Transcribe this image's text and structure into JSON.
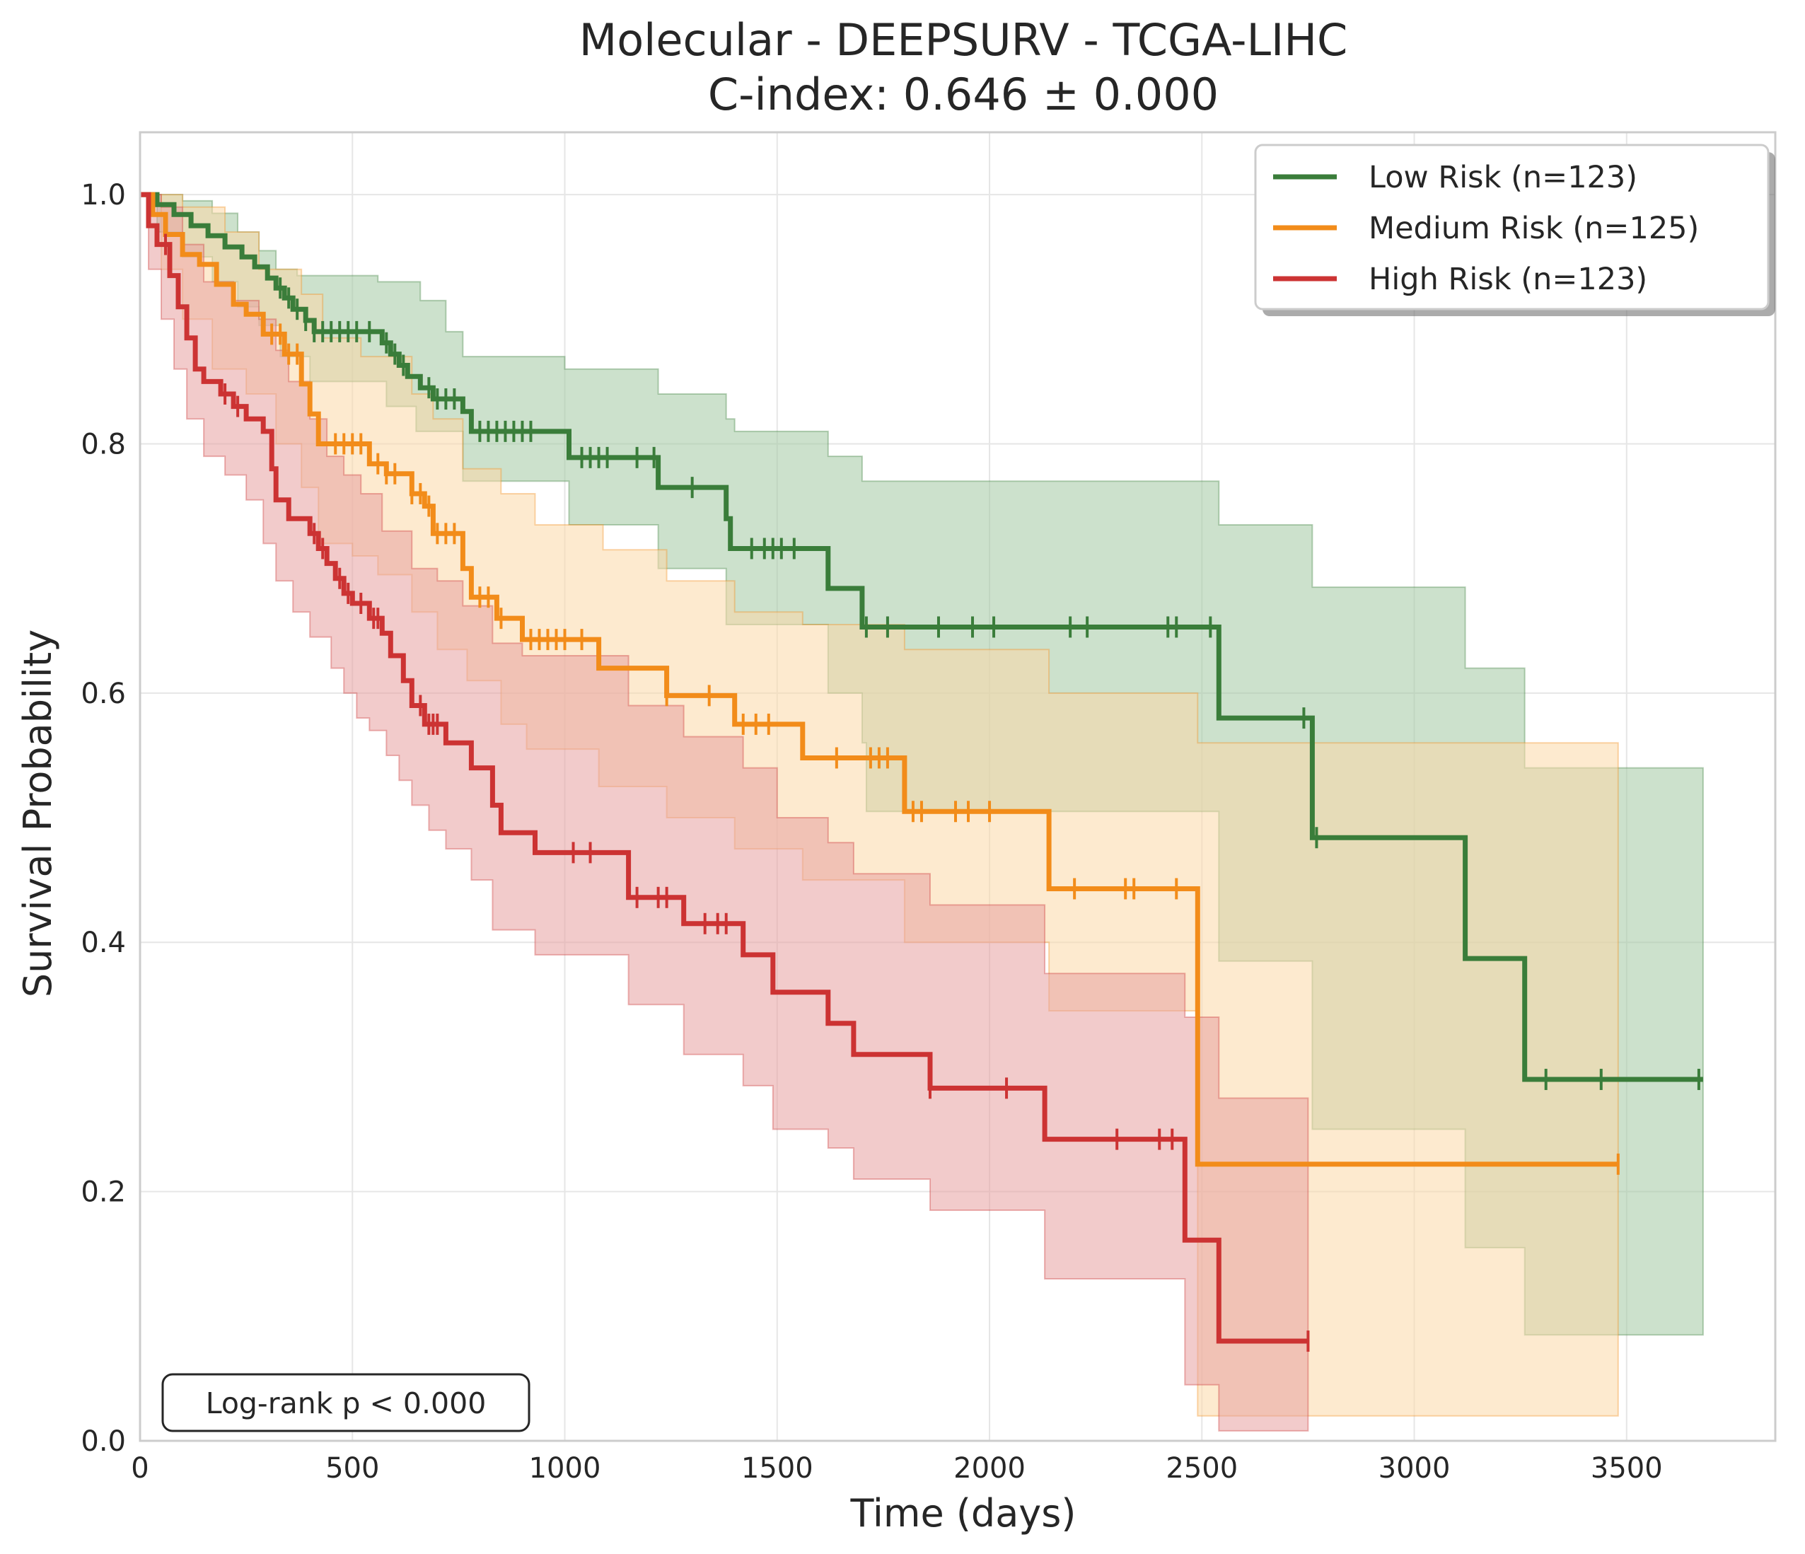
{
  "chart_data": {
    "type": "line",
    "title": "Molecular - DEEPSURV - TCGA-LIHC",
    "subtitle": "C-index: 0.646 ± 0.000",
    "xlabel": "Time (days)",
    "ylabel": "Survival Probability",
    "xlim": [
      0,
      3850
    ],
    "ylim": [
      0,
      1.05
    ],
    "xticks": [
      0,
      500,
      1000,
      1500,
      2000,
      2500,
      3000,
      3500
    ],
    "yticks": [
      0.0,
      0.2,
      0.4,
      0.6,
      0.8,
      1.0
    ],
    "xtick_labels": [
      "0",
      "500",
      "1000",
      "1500",
      "2000",
      "2500",
      "3000",
      "3500"
    ],
    "ytick_labels": [
      "0.0",
      "0.2",
      "0.4",
      "0.6",
      "0.8",
      "1.0"
    ],
    "grid": true,
    "legend_position": "top-right",
    "annotation": "Log-rank p < 0.000",
    "series": [
      {
        "name": "Low Risk (n=123)",
        "color": "#3a7d3a",
        "band_color": "#a3c9a3",
        "steps": [
          [
            0,
            1.0
          ],
          [
            40,
            0.992
          ],
          [
            80,
            0.984
          ],
          [
            120,
            0.975
          ],
          [
            160,
            0.967
          ],
          [
            200,
            0.958
          ],
          [
            240,
            0.95
          ],
          [
            270,
            0.942
          ],
          [
            300,
            0.933
          ],
          [
            320,
            0.925
          ],
          [
            340,
            0.917
          ],
          [
            360,
            0.908
          ],
          [
            390,
            0.899
          ],
          [
            410,
            0.89
          ],
          [
            570,
            0.881
          ],
          [
            590,
            0.872
          ],
          [
            610,
            0.863
          ],
          [
            630,
            0.854
          ],
          [
            660,
            0.845
          ],
          [
            690,
            0.836
          ],
          [
            760,
            0.826
          ],
          [
            780,
            0.81
          ],
          [
            1010,
            0.789
          ],
          [
            1220,
            0.765
          ],
          [
            1380,
            0.74
          ],
          [
            1390,
            0.716
          ],
          [
            1620,
            0.684
          ],
          [
            1700,
            0.653
          ],
          [
            2540,
            0.58
          ],
          [
            2760,
            0.484
          ],
          [
            3120,
            0.387
          ],
          [
            3260,
            0.29
          ],
          [
            3680,
            0.29
          ]
        ],
        "upper": [
          [
            0,
            1.0
          ],
          [
            100,
            0.995
          ],
          [
            170,
            0.985
          ],
          [
            230,
            0.97
          ],
          [
            280,
            0.955
          ],
          [
            320,
            0.94
          ],
          [
            370,
            0.935
          ],
          [
            560,
            0.93
          ],
          [
            660,
            0.915
          ],
          [
            720,
            0.89
          ],
          [
            760,
            0.87
          ],
          [
            1000,
            0.86
          ],
          [
            1220,
            0.84
          ],
          [
            1380,
            0.82
          ],
          [
            1400,
            0.81
          ],
          [
            1620,
            0.79
          ],
          [
            1700,
            0.77
          ],
          [
            2540,
            0.735
          ],
          [
            2760,
            0.685
          ],
          [
            3120,
            0.62
          ],
          [
            3260,
            0.54
          ],
          [
            3680,
            0.54
          ]
        ],
        "lower": [
          [
            0,
            1.0
          ],
          [
            40,
            0.97
          ],
          [
            100,
            0.95
          ],
          [
            170,
            0.93
          ],
          [
            230,
            0.91
          ],
          [
            280,
            0.895
          ],
          [
            330,
            0.87
          ],
          [
            400,
            0.85
          ],
          [
            580,
            0.83
          ],
          [
            650,
            0.81
          ],
          [
            760,
            0.77
          ],
          [
            1010,
            0.735
          ],
          [
            1220,
            0.7
          ],
          [
            1380,
            0.655
          ],
          [
            1620,
            0.6
          ],
          [
            1700,
            0.56
          ],
          [
            1710,
            0.505
          ],
          [
            2540,
            0.385
          ],
          [
            2760,
            0.25
          ],
          [
            3120,
            0.155
          ],
          [
            3260,
            0.085
          ],
          [
            3680,
            0.085
          ]
        ],
        "censor_times": [
          330,
          350,
          370,
          390,
          410,
          430,
          450,
          470,
          490,
          510,
          540,
          580,
          600,
          620,
          680,
          700,
          720,
          740,
          800,
          820,
          840,
          860,
          880,
          900,
          920,
          1040,
          1060,
          1080,
          1100,
          1170,
          1210,
          1300,
          1440,
          1470,
          1490,
          1510,
          1540,
          1710,
          1760,
          1880,
          1960,
          2010,
          2190,
          2230,
          2420,
          2440,
          2520,
          2740,
          2770,
          3310,
          3440,
          3670
        ]
      },
      {
        "name": "Medium Risk (n=125)",
        "color": "#f28c1a",
        "band_color": "#fcd9a8",
        "steps": [
          [
            0,
            1.0
          ],
          [
            30,
            0.984
          ],
          [
            60,
            0.968
          ],
          [
            100,
            0.952
          ],
          [
            140,
            0.944
          ],
          [
            180,
            0.928
          ],
          [
            220,
            0.912
          ],
          [
            250,
            0.904
          ],
          [
            290,
            0.888
          ],
          [
            340,
            0.872
          ],
          [
            380,
            0.848
          ],
          [
            400,
            0.824
          ],
          [
            420,
            0.8
          ],
          [
            540,
            0.784
          ],
          [
            580,
            0.776
          ],
          [
            640,
            0.76
          ],
          [
            670,
            0.75
          ],
          [
            690,
            0.728
          ],
          [
            760,
            0.7
          ],
          [
            780,
            0.677
          ],
          [
            840,
            0.66
          ],
          [
            900,
            0.643
          ],
          [
            1080,
            0.62
          ],
          [
            1240,
            0.598
          ],
          [
            1400,
            0.575
          ],
          [
            1560,
            0.548
          ],
          [
            1800,
            0.505
          ],
          [
            2140,
            0.443
          ],
          [
            2490,
            0.222
          ],
          [
            3480,
            0.222
          ]
        ],
        "upper": [
          [
            0,
            1.0
          ],
          [
            100,
            0.99
          ],
          [
            200,
            0.97
          ],
          [
            280,
            0.94
          ],
          [
            380,
            0.92
          ],
          [
            430,
            0.885
          ],
          [
            520,
            0.87
          ],
          [
            640,
            0.84
          ],
          [
            690,
            0.82
          ],
          [
            760,
            0.78
          ],
          [
            850,
            0.76
          ],
          [
            930,
            0.735
          ],
          [
            1090,
            0.715
          ],
          [
            1240,
            0.69
          ],
          [
            1400,
            0.665
          ],
          [
            1560,
            0.655
          ],
          [
            1800,
            0.635
          ],
          [
            2140,
            0.6
          ],
          [
            2490,
            0.56
          ],
          [
            3480,
            0.56
          ]
        ],
        "lower": [
          [
            0,
            1.0
          ],
          [
            50,
            0.94
          ],
          [
            100,
            0.9
          ],
          [
            170,
            0.86
          ],
          [
            250,
            0.84
          ],
          [
            320,
            0.8
          ],
          [
            380,
            0.765
          ],
          [
            420,
            0.72
          ],
          [
            500,
            0.71
          ],
          [
            560,
            0.695
          ],
          [
            640,
            0.665
          ],
          [
            700,
            0.635
          ],
          [
            770,
            0.61
          ],
          [
            850,
            0.575
          ],
          [
            910,
            0.555
          ],
          [
            1080,
            0.525
          ],
          [
            1240,
            0.5
          ],
          [
            1400,
            0.475
          ],
          [
            1560,
            0.45
          ],
          [
            1800,
            0.4
          ],
          [
            2140,
            0.345
          ],
          [
            2490,
            0.02
          ],
          [
            3480,
            0.02
          ]
        ],
        "censor_times": [
          310,
          330,
          350,
          370,
          460,
          480,
          500,
          520,
          560,
          580,
          600,
          640,
          660,
          680,
          700,
          720,
          740,
          800,
          820,
          850,
          920,
          940,
          960,
          980,
          1000,
          1040,
          1240,
          1340,
          1420,
          1450,
          1480,
          1640,
          1720,
          1740,
          1760,
          1820,
          1840,
          1920,
          1950,
          2000,
          2200,
          2320,
          2340,
          2440,
          3480
        ]
      },
      {
        "name": "High Risk (n=123)",
        "color": "#cc3333",
        "band_color": "#e8a0a0",
        "steps": [
          [
            0,
            1.0
          ],
          [
            20,
            0.975
          ],
          [
            40,
            0.96
          ],
          [
            70,
            0.935
          ],
          [
            90,
            0.91
          ],
          [
            110,
            0.885
          ],
          [
            130,
            0.86
          ],
          [
            150,
            0.85
          ],
          [
            190,
            0.84
          ],
          [
            220,
            0.83
          ],
          [
            250,
            0.82
          ],
          [
            290,
            0.81
          ],
          [
            310,
            0.78
          ],
          [
            320,
            0.755
          ],
          [
            350,
            0.74
          ],
          [
            400,
            0.728
          ],
          [
            420,
            0.716
          ],
          [
            440,
            0.704
          ],
          [
            460,
            0.692
          ],
          [
            480,
            0.68
          ],
          [
            500,
            0.672
          ],
          [
            540,
            0.66
          ],
          [
            570,
            0.648
          ],
          [
            590,
            0.63
          ],
          [
            620,
            0.61
          ],
          [
            640,
            0.59
          ],
          [
            670,
            0.575
          ],
          [
            720,
            0.56
          ],
          [
            780,
            0.54
          ],
          [
            830,
            0.51
          ],
          [
            850,
            0.488
          ],
          [
            930,
            0.472
          ],
          [
            1150,
            0.436
          ],
          [
            1280,
            0.415
          ],
          [
            1420,
            0.39
          ],
          [
            1490,
            0.36
          ],
          [
            1620,
            0.335
          ],
          [
            1680,
            0.31
          ],
          [
            1860,
            0.283
          ],
          [
            2130,
            0.242
          ],
          [
            2460,
            0.161
          ],
          [
            2540,
            0.08
          ],
          [
            2750,
            0.08
          ]
        ],
        "upper": [
          [
            0,
            1.0
          ],
          [
            50,
            0.99
          ],
          [
            100,
            0.96
          ],
          [
            150,
            0.93
          ],
          [
            220,
            0.915
          ],
          [
            280,
            0.9
          ],
          [
            320,
            0.875
          ],
          [
            350,
            0.85
          ],
          [
            400,
            0.82
          ],
          [
            440,
            0.79
          ],
          [
            480,
            0.775
          ],
          [
            520,
            0.76
          ],
          [
            570,
            0.73
          ],
          [
            640,
            0.7
          ],
          [
            700,
            0.69
          ],
          [
            760,
            0.67
          ],
          [
            830,
            0.64
          ],
          [
            900,
            0.63
          ],
          [
            1150,
            0.59
          ],
          [
            1280,
            0.565
          ],
          [
            1420,
            0.54
          ],
          [
            1500,
            0.5
          ],
          [
            1620,
            0.48
          ],
          [
            1680,
            0.455
          ],
          [
            1860,
            0.43
          ],
          [
            2130,
            0.375
          ],
          [
            2460,
            0.34
          ],
          [
            2540,
            0.275
          ],
          [
            2750,
            0.275
          ]
        ],
        "lower": [
          [
            0,
            1.0
          ],
          [
            20,
            0.94
          ],
          [
            50,
            0.9
          ],
          [
            80,
            0.86
          ],
          [
            110,
            0.82
          ],
          [
            150,
            0.79
          ],
          [
            200,
            0.775
          ],
          [
            250,
            0.755
          ],
          [
            290,
            0.72
          ],
          [
            320,
            0.69
          ],
          [
            360,
            0.665
          ],
          [
            400,
            0.645
          ],
          [
            450,
            0.62
          ],
          [
            480,
            0.6
          ],
          [
            510,
            0.58
          ],
          [
            540,
            0.57
          ],
          [
            580,
            0.55
          ],
          [
            610,
            0.53
          ],
          [
            640,
            0.51
          ],
          [
            680,
            0.49
          ],
          [
            720,
            0.475
          ],
          [
            780,
            0.45
          ],
          [
            830,
            0.41
          ],
          [
            930,
            0.39
          ],
          [
            1150,
            0.35
          ],
          [
            1280,
            0.31
          ],
          [
            1420,
            0.285
          ],
          [
            1490,
            0.25
          ],
          [
            1620,
            0.235
          ],
          [
            1680,
            0.21
          ],
          [
            1860,
            0.185
          ],
          [
            2130,
            0.13
          ],
          [
            2460,
            0.045
          ],
          [
            2540,
            0.008
          ],
          [
            2750,
            0.008
          ]
        ],
        "censor_times": [
          60,
          200,
          230,
          410,
          430,
          470,
          490,
          520,
          550,
          560,
          660,
          680,
          690,
          700,
          1020,
          1060,
          1170,
          1220,
          1240,
          1330,
          1360,
          1380,
          1860,
          2040,
          2300,
          2400,
          2430,
          2750
        ]
      }
    ]
  }
}
